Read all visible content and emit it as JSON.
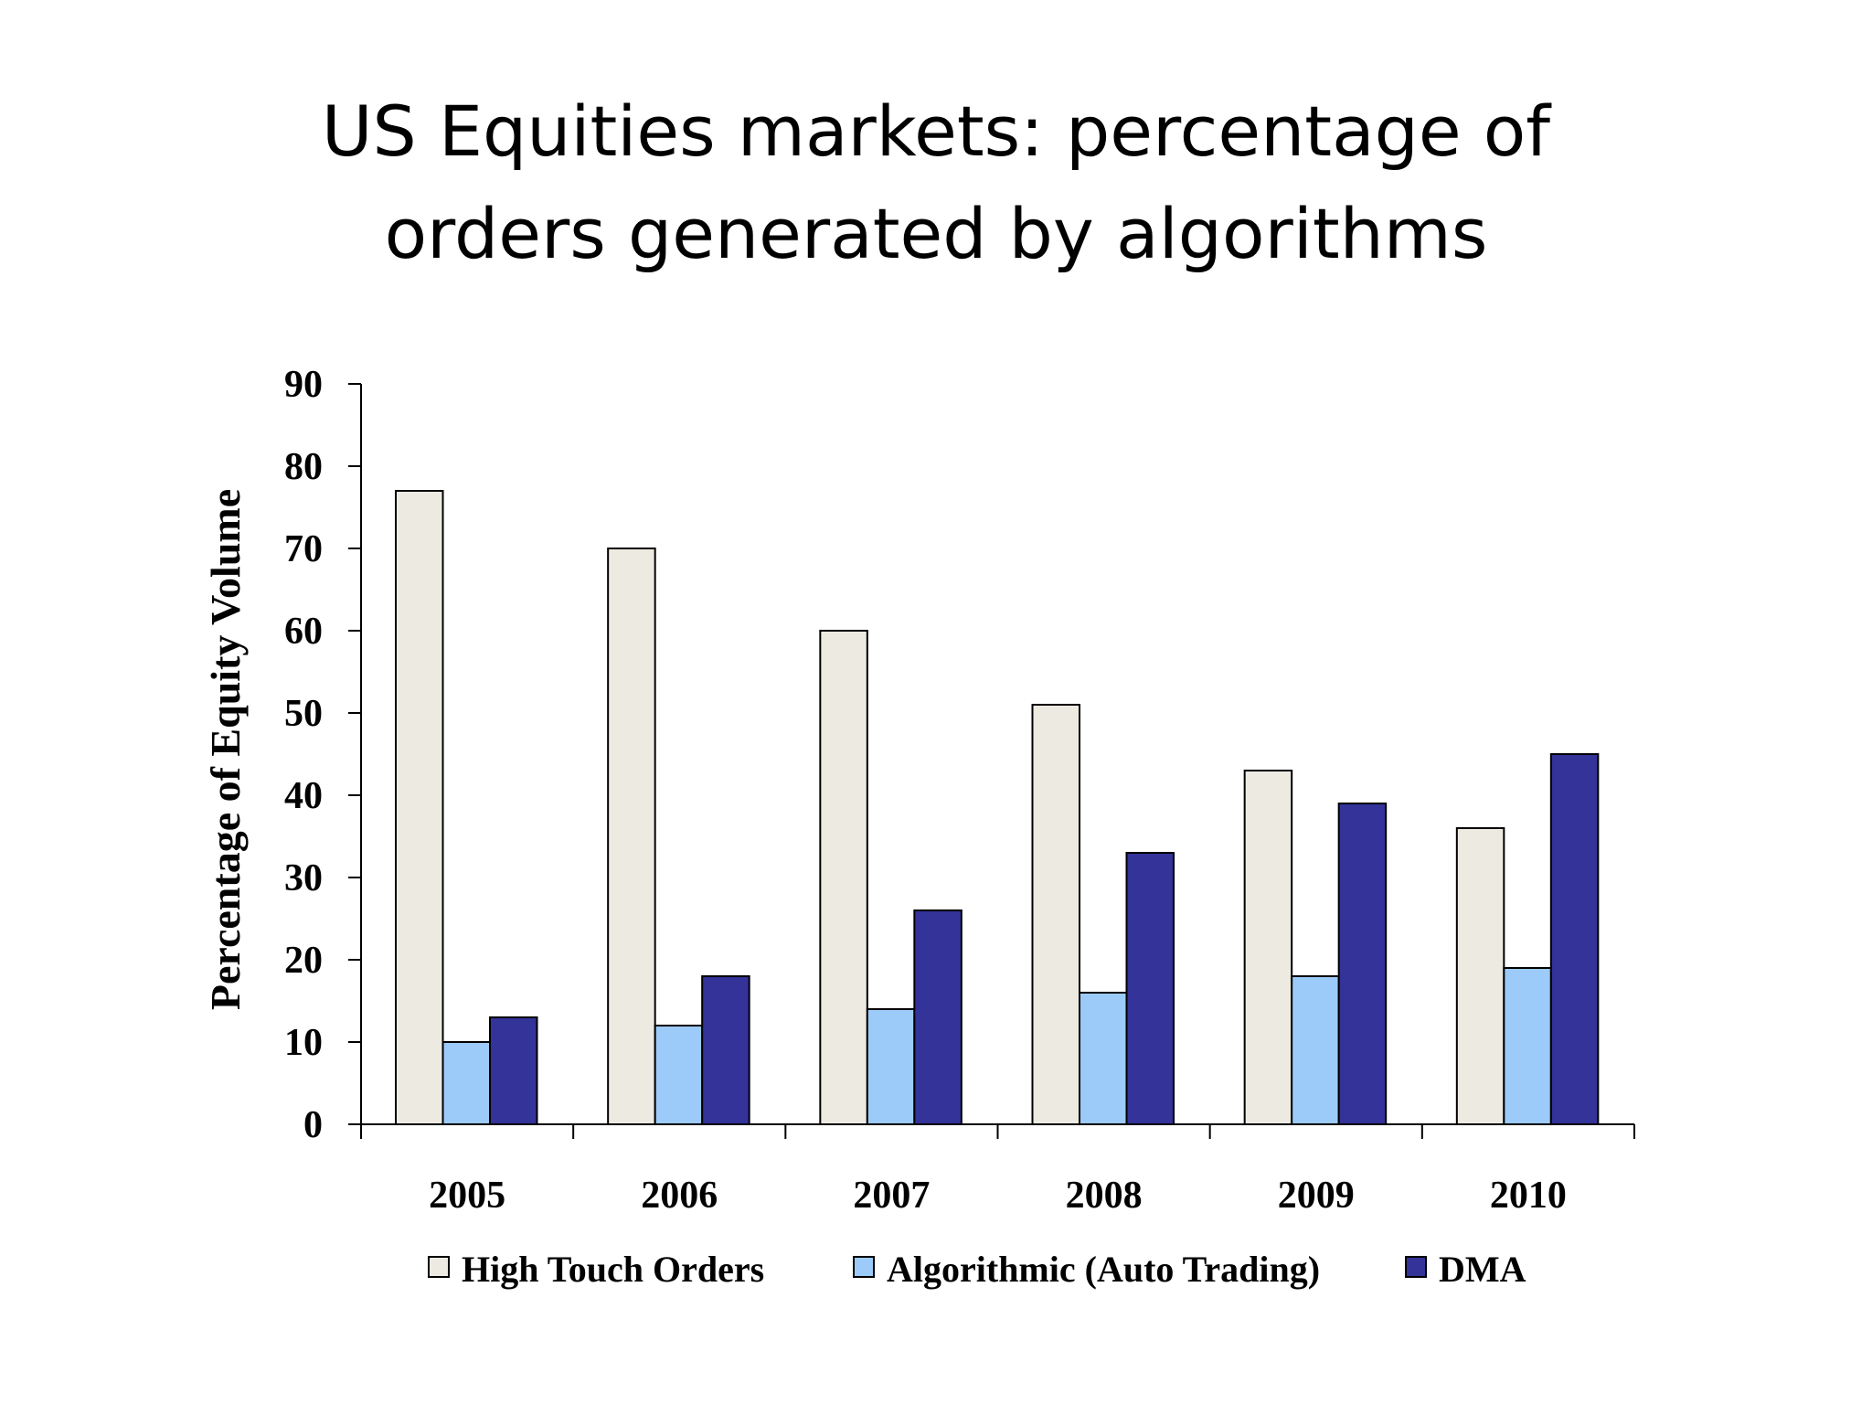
{
  "title": {
    "line1": "US Equities markets: percentage of",
    "line2": "orders generated by algorithms"
  },
  "chart_data": {
    "type": "bar",
    "title": "US Equities markets: percentage of orders generated by algorithms",
    "xlabel": "",
    "ylabel": "Percentage of Equity Volume",
    "categories": [
      "2005",
      "2006",
      "2007",
      "2008",
      "2009",
      "2010"
    ],
    "series": [
      {
        "name": "High Touch Orders",
        "values": [
          77,
          70,
          60,
          51,
          43,
          36
        ],
        "color": "#EDEAE2"
      },
      {
        "name": "Algorithmic (Auto Trading)",
        "values": [
          10,
          12,
          14,
          16,
          18,
          19
        ],
        "color": "#9CCBFA"
      },
      {
        "name": "DMA",
        "values": [
          13,
          18,
          26,
          33,
          39,
          45
        ],
        "color": "#333399"
      }
    ],
    "ylim": [
      0,
      90
    ],
    "yticks": [
      0,
      10,
      20,
      30,
      40,
      50,
      60,
      70,
      80,
      90
    ],
    "grid": false,
    "legend_position": "bottom"
  }
}
